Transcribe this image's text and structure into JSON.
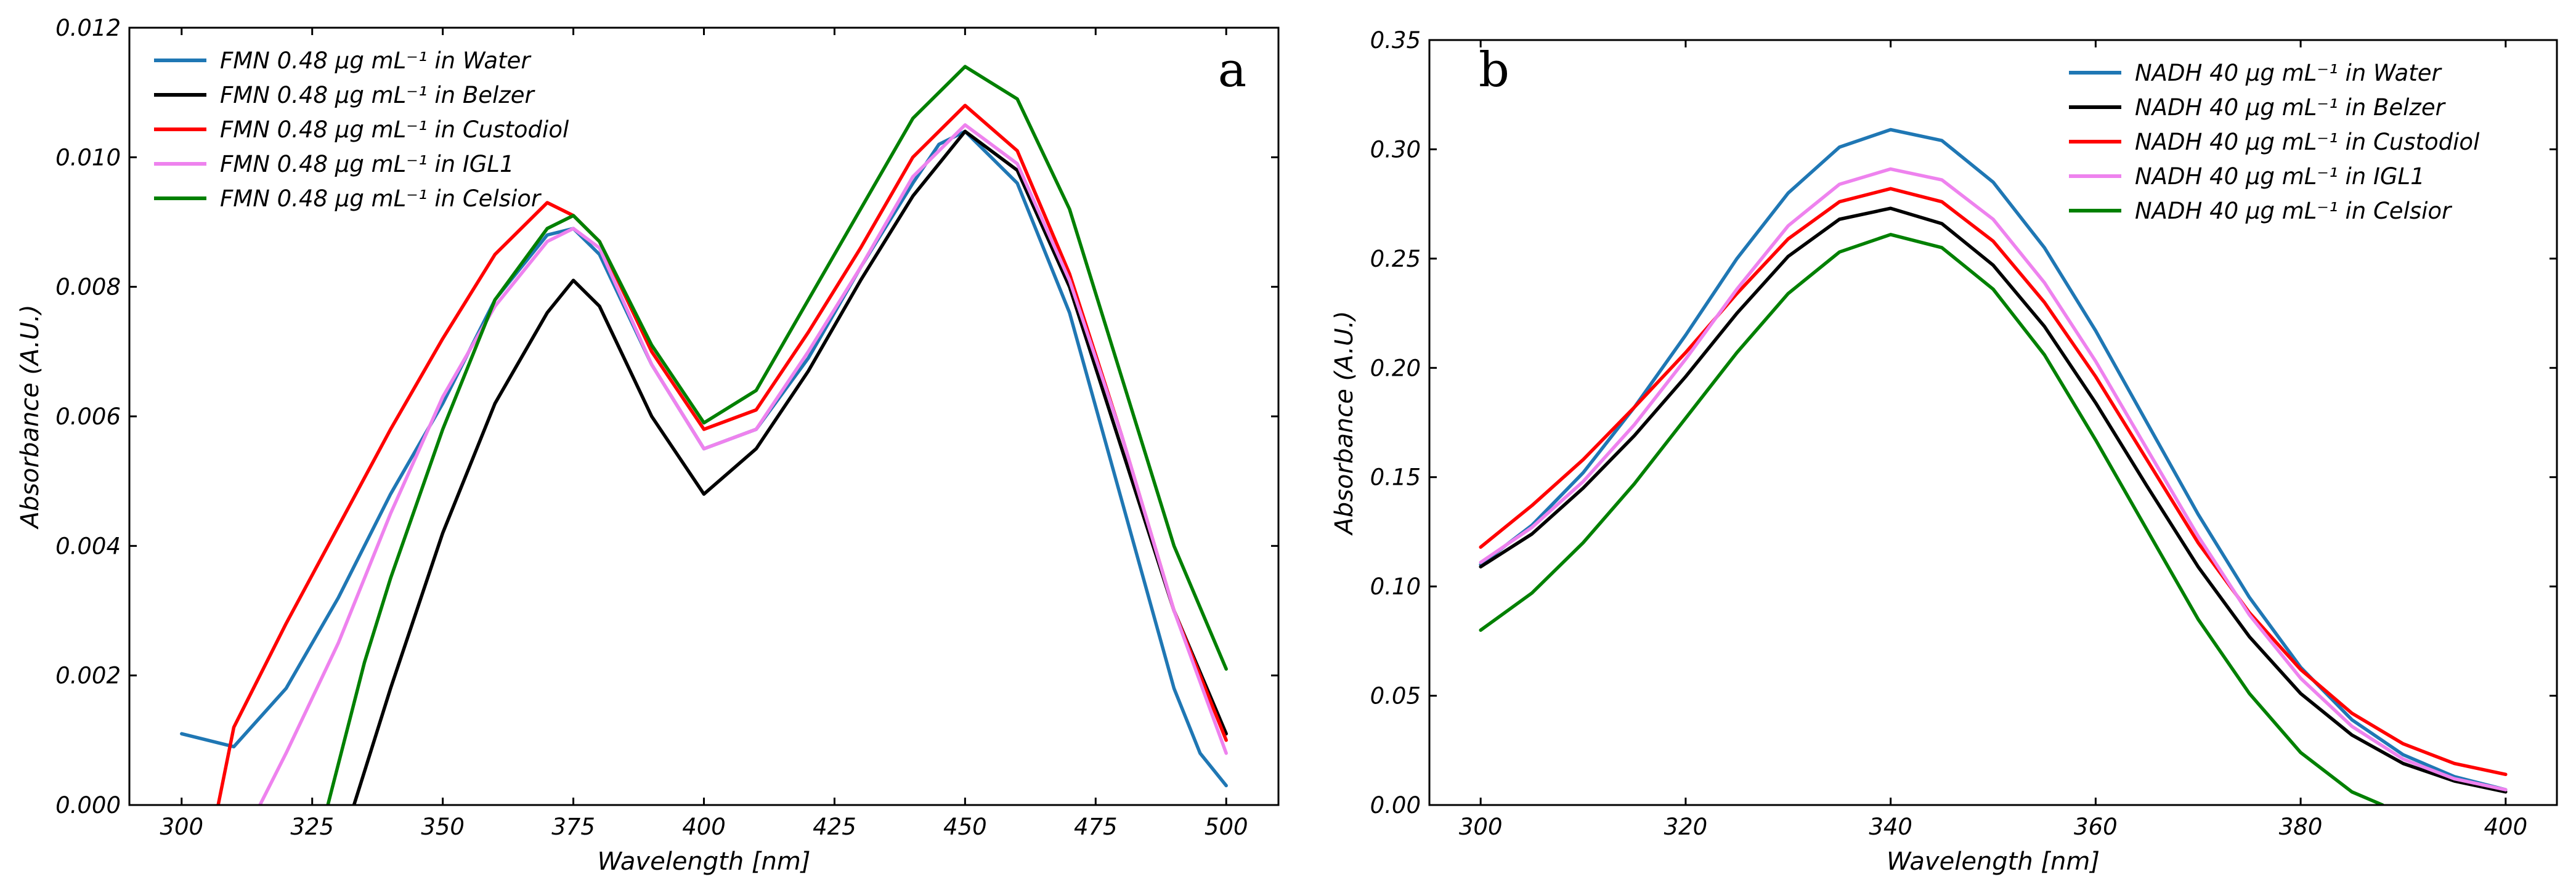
{
  "chart_data": [
    {
      "panel_label": "a",
      "type": "line",
      "xlabel": "Wavelength [nm]",
      "ylabel": "Absorbance (A.U.)",
      "xlim": [
        290,
        510
      ],
      "ylim": [
        0,
        0.012
      ],
      "xticks": [
        300,
        325,
        350,
        375,
        400,
        425,
        450,
        475,
        500
      ],
      "xtick_labels": [
        "300",
        "325",
        "350",
        "375",
        "400",
        "425",
        "450",
        "475",
        "500"
      ],
      "yticks": [
        0,
        0.002,
        0.004,
        0.006,
        0.008,
        0.01,
        0.012
      ],
      "ytick_labels": [
        "0.000",
        "0.002",
        "0.004",
        "0.006",
        "0.008",
        "0.010",
        "0.012"
      ],
      "legend_position": "top-left",
      "series": [
        {
          "name": "FMN 0.48 μg mL⁻¹ in Water",
          "color": "#1f77b4",
          "x": [
            300,
            310,
            320,
            330,
            340,
            350,
            360,
            370,
            375,
            380,
            390,
            400,
            410,
            420,
            430,
            440,
            445,
            450,
            460,
            470,
            480,
            490,
            495,
            500
          ],
          "y": [
            0.0011,
            0.0009,
            0.0018,
            0.0032,
            0.0048,
            0.0062,
            0.0078,
            0.0088,
            0.0089,
            0.0085,
            0.0068,
            0.0055,
            0.0058,
            0.0069,
            0.0083,
            0.0096,
            0.0102,
            0.0104,
            0.0096,
            0.0076,
            0.0047,
            0.0018,
            0.0008,
            0.0003
          ]
        },
        {
          "name": "FMN 0.48 μg mL⁻¹ in Belzer",
          "color": "#000000",
          "x": [
            333,
            340,
            350,
            360,
            370,
            375,
            380,
            390,
            400,
            410,
            420,
            430,
            440,
            450,
            460,
            470,
            480,
            490,
            500
          ],
          "y": [
            0.0,
            0.0018,
            0.0042,
            0.0062,
            0.0076,
            0.0081,
            0.0077,
            0.006,
            0.0048,
            0.0055,
            0.0067,
            0.0081,
            0.0094,
            0.0104,
            0.0098,
            0.008,
            0.0055,
            0.003,
            0.0011
          ]
        },
        {
          "name": "FMN 0.48 μg mL⁻¹ in Custodiol",
          "color": "#ff0000",
          "x": [
            307,
            310,
            320,
            330,
            340,
            350,
            360,
            370,
            375,
            380,
            390,
            400,
            410,
            420,
            430,
            440,
            450,
            460,
            470,
            480,
            490,
            500
          ],
          "y": [
            0.0,
            0.0012,
            0.0028,
            0.0043,
            0.0058,
            0.0072,
            0.0085,
            0.0093,
            0.0091,
            0.0087,
            0.007,
            0.0058,
            0.0061,
            0.0073,
            0.0086,
            0.01,
            0.0108,
            0.0101,
            0.0082,
            0.0057,
            0.003,
            0.001
          ]
        },
        {
          "name": "FMN 0.48 μg mL⁻¹ in IGL1",
          "color": "#ee82ee",
          "x": [
            315,
            320,
            330,
            340,
            350,
            360,
            370,
            375,
            380,
            390,
            400,
            410,
            420,
            430,
            440,
            450,
            460,
            470,
            480,
            490,
            500
          ],
          "y": [
            0.0,
            0.0008,
            0.0025,
            0.0045,
            0.0063,
            0.0077,
            0.0087,
            0.0089,
            0.0086,
            0.0068,
            0.0055,
            0.0058,
            0.007,
            0.0083,
            0.0097,
            0.0105,
            0.0099,
            0.0081,
            0.0057,
            0.003,
            0.0008
          ]
        },
        {
          "name": "FMN 0.48 μg mL⁻¹ in Celsior",
          "color": "#008000",
          "x": [
            328,
            335,
            340,
            350,
            360,
            370,
            375,
            380,
            390,
            400,
            410,
            420,
            430,
            440,
            450,
            460,
            470,
            480,
            490,
            500
          ],
          "y": [
            0.0,
            0.0022,
            0.0035,
            0.0058,
            0.0078,
            0.0089,
            0.0091,
            0.0087,
            0.0071,
            0.0059,
            0.0064,
            0.0078,
            0.0092,
            0.0106,
            0.0114,
            0.0109,
            0.0092,
            0.0066,
            0.004,
            0.0021
          ]
        }
      ]
    },
    {
      "panel_label": "b",
      "type": "line",
      "xlabel": "Wavelength [nm]",
      "ylabel": "Absorbance (A.U.)",
      "xlim": [
        295,
        405
      ],
      "ylim": [
        0,
        0.35
      ],
      "xticks": [
        300,
        320,
        340,
        360,
        380,
        400
      ],
      "xtick_labels": [
        "300",
        "320",
        "340",
        "360",
        "380",
        "400"
      ],
      "yticks": [
        0,
        0.05,
        0.1,
        0.15,
        0.2,
        0.25,
        0.3,
        0.35
      ],
      "ytick_labels": [
        "0.00",
        "0.05",
        "0.10",
        "0.15",
        "0.20",
        "0.25",
        "0.30",
        "0.35"
      ],
      "legend_position": "top-right",
      "series": [
        {
          "name": "NADH 40 μg mL⁻¹ in Water",
          "color": "#1f77b4",
          "x": [
            300,
            305,
            310,
            315,
            320,
            325,
            330,
            335,
            340,
            345,
            350,
            355,
            360,
            365,
            370,
            375,
            380,
            385,
            390,
            395,
            400
          ],
          "y": [
            0.11,
            0.128,
            0.152,
            0.182,
            0.215,
            0.25,
            0.28,
            0.301,
            0.309,
            0.304,
            0.285,
            0.255,
            0.217,
            0.175,
            0.133,
            0.095,
            0.063,
            0.039,
            0.023,
            0.013,
            0.007
          ]
        },
        {
          "name": "NADH 40 μg mL⁻¹ in Belzer",
          "color": "#000000",
          "x": [
            300,
            305,
            310,
            315,
            320,
            325,
            330,
            335,
            340,
            345,
            350,
            355,
            360,
            365,
            370,
            375,
            380,
            385,
            390,
            395,
            400
          ],
          "y": [
            0.109,
            0.124,
            0.145,
            0.169,
            0.196,
            0.225,
            0.251,
            0.268,
            0.273,
            0.266,
            0.247,
            0.219,
            0.184,
            0.146,
            0.109,
            0.077,
            0.051,
            0.032,
            0.019,
            0.011,
            0.006
          ]
        },
        {
          "name": "NADH 40 μg mL⁻¹ in Custodiol",
          "color": "#ff0000",
          "x": [
            300,
            305,
            310,
            315,
            320,
            325,
            330,
            335,
            340,
            345,
            350,
            355,
            360,
            365,
            370,
            375,
            380,
            385,
            390,
            395,
            400
          ],
          "y": [
            0.118,
            0.137,
            0.158,
            0.182,
            0.207,
            0.234,
            0.259,
            0.276,
            0.282,
            0.276,
            0.258,
            0.23,
            0.196,
            0.158,
            0.12,
            0.088,
            0.062,
            0.042,
            0.028,
            0.019,
            0.014
          ]
        },
        {
          "name": "NADH 40 μg mL⁻¹ in IGL1",
          "color": "#ee82ee",
          "x": [
            300,
            305,
            310,
            315,
            320,
            325,
            330,
            335,
            340,
            345,
            350,
            355,
            360,
            365,
            370,
            375,
            380,
            385,
            390,
            395,
            400
          ],
          "y": [
            0.111,
            0.127,
            0.148,
            0.174,
            0.204,
            0.236,
            0.265,
            0.284,
            0.291,
            0.286,
            0.268,
            0.239,
            0.203,
            0.163,
            0.123,
            0.087,
            0.058,
            0.036,
            0.021,
            0.012,
            0.007
          ]
        },
        {
          "name": "NADH 40 μg mL⁻¹ in Celsior",
          "color": "#008000",
          "x": [
            300,
            305,
            310,
            315,
            320,
            325,
            330,
            335,
            340,
            345,
            350,
            355,
            360,
            365,
            370,
            375,
            380,
            385,
            388
          ],
          "y": [
            0.08,
            0.097,
            0.12,
            0.147,
            0.177,
            0.207,
            0.234,
            0.253,
            0.261,
            0.255,
            0.236,
            0.206,
            0.167,
            0.126,
            0.085,
            0.051,
            0.024,
            0.006,
            0.0
          ]
        }
      ]
    }
  ]
}
